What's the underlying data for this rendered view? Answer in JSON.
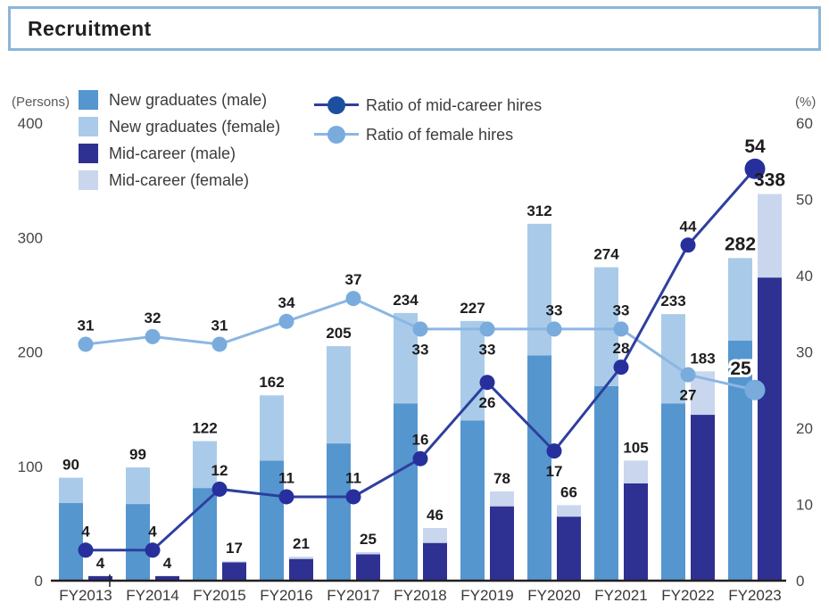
{
  "title": "Recruitment",
  "legend": {
    "bars": [
      {
        "label": "New graduates (male)",
        "color": "#5596cf"
      },
      {
        "label": "New graduates (female)",
        "color": "#a9cbe9"
      },
      {
        "label": "Mid-career (male)",
        "color": "#2e3192"
      },
      {
        "label": "Mid-career (female)",
        "color": "#c9d6ee"
      }
    ],
    "lines": [
      {
        "label": "Ratio of mid-career hires",
        "line_color": "#2e3f9e",
        "marker_color": "#1d4fa1"
      },
      {
        "label": "Ratio of female hires",
        "line_color": "#8cb6e3",
        "marker_color": "#79abdd"
      }
    ]
  },
  "chart_data": {
    "type": "bar",
    "subtype": "stacked-bar-with-lines",
    "title": "Recruitment",
    "grid": false,
    "legend_position": "top",
    "categories": [
      "FY2013",
      "FY2014",
      "FY2015",
      "FY2016",
      "FY2017",
      "FY2018",
      "FY2019",
      "FY2020",
      "FY2021",
      "FY2022",
      "FY2023"
    ],
    "left_axis": {
      "unit": "(Persons)",
      "max": 400,
      "ticks": [
        400,
        300,
        200,
        100,
        0
      ]
    },
    "right_axis": {
      "unit": "(%)",
      "max": 60,
      "ticks": [
        60,
        50,
        40,
        30,
        20,
        10,
        0
      ]
    },
    "bar_series": [
      {
        "name": "New graduates (male)",
        "stack": "new_graduates",
        "color": "#5596cf",
        "values": [
          68,
          67,
          81,
          105,
          120,
          155,
          140,
          197,
          170,
          155,
          210
        ]
      },
      {
        "name": "New graduates (female)",
        "stack": "new_graduates",
        "color": "#a9cbe9",
        "values": [
          22,
          32,
          41,
          57,
          85,
          79,
          87,
          115,
          104,
          78,
          72
        ]
      },
      {
        "name": "Mid-career (male)",
        "stack": "mid_career",
        "color": "#2e3192",
        "values": [
          4,
          4,
          16,
          19,
          23,
          33,
          65,
          56,
          85,
          145,
          265
        ]
      },
      {
        "name": "Mid-career (female)",
        "stack": "mid_career",
        "color": "#c9d6ee",
        "values": [
          0,
          0,
          1,
          2,
          2,
          13,
          13,
          10,
          20,
          38,
          73
        ]
      }
    ],
    "stack_totals": {
      "new_graduates": [
        90,
        99,
        122,
        162,
        205,
        234,
        227,
        312,
        274,
        233,
        282
      ],
      "mid_career": [
        4,
        4,
        17,
        21,
        25,
        46,
        78,
        66,
        105,
        183,
        338
      ]
    },
    "line_series": [
      {
        "name": "Ratio of mid-career hires",
        "axis": "right",
        "color": "#2e3f9e",
        "marker_color": "#272f9d",
        "values": [
          4,
          4,
          12,
          11,
          11,
          16,
          26,
          17,
          28,
          44,
          54
        ],
        "label_side": [
          "above",
          "above",
          "above",
          "above",
          "above",
          "above",
          "below",
          "below",
          "above",
          "above",
          "above"
        ]
      },
      {
        "name": "Ratio of female hires",
        "axis": "right",
        "color": "#8cb6e3",
        "marker_color": "#79abdd",
        "values": [
          31,
          32,
          31,
          34,
          37,
          33,
          33,
          33,
          33,
          27,
          25
        ],
        "label_side": [
          "above",
          "above",
          "above",
          "above",
          "above",
          "below",
          "below",
          "above",
          "above",
          "below",
          "above-left"
        ]
      }
    ],
    "emphasis_last_category": true,
    "label_color": "#1d1c1e",
    "axis_color": "#231f20",
    "tick_label_color": "#47474a"
  }
}
